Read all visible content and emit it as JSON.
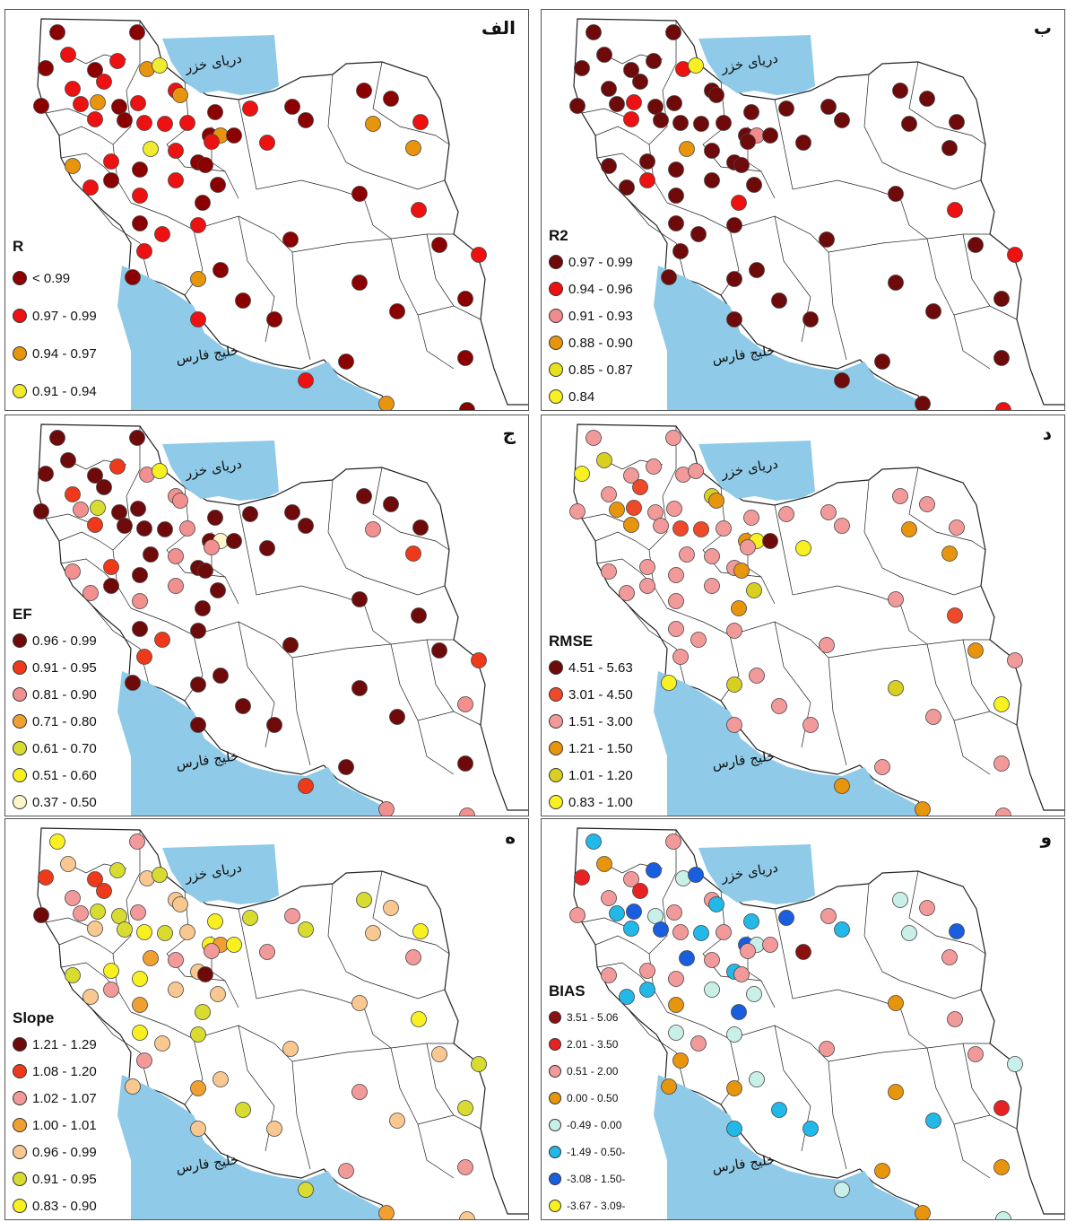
{
  "sea_labels": {
    "caspian": "دریای خزر",
    "gulf": "خلیج فارس"
  },
  "colors": {
    "sea": "#8fcbe8",
    "land": "#ffffff",
    "border": "#222222"
  },
  "panels": [
    {
      "id": "r",
      "title": "الف",
      "legend_title": "R",
      "legend": [
        {
          "label": "< 0.99",
          "color": "#8b0000"
        },
        {
          "label": "0.97 - 0.99",
          "color": "#ee1111"
        },
        {
          "label": "0.94 - 0.97",
          "color": "#e8950e"
        },
        {
          "label": "0.91 - 0.94",
          "color": "#f0ea30"
        }
      ],
      "cats": [
        0,
        0,
        1,
        1,
        0,
        0,
        1,
        1,
        2,
        3,
        1,
        1,
        2,
        2,
        1,
        0,
        0,
        1,
        0,
        1,
        1,
        1,
        0,
        1,
        0,
        0,
        0,
        2,
        0,
        1,
        3,
        1,
        2,
        1,
        0,
        1,
        0,
        0,
        0,
        1,
        1,
        0,
        1,
        0,
        1,
        0,
        1,
        1,
        0,
        2,
        0,
        1,
        0,
        0,
        1,
        2,
        0,
        0,
        1,
        0,
        0,
        0,
        2,
        1,
        2,
        0,
        0,
        0,
        0,
        1,
        0,
        0
      ]
    },
    {
      "id": "r2",
      "title": "ب",
      "legend_title": "R2",
      "legend": [
        {
          "label": "0.97 - 0.99",
          "color": "#6e0a0a"
        },
        {
          "label": "0.94 - 0.96",
          "color": "#ee1111"
        },
        {
          "label": "0.91 - 0.93",
          "color": "#f28b8b"
        },
        {
          "label": "0.88 - 0.90",
          "color": "#e8950e"
        },
        {
          "label": "0.85 - 0.87",
          "color": "#e6e01e"
        },
        {
          "label": "0.84",
          "color": "#f8f020"
        }
      ],
      "cats": [
        0,
        0,
        0,
        0,
        0,
        0,
        0,
        0,
        1,
        5,
        0,
        0,
        1,
        0,
        0,
        0,
        0,
        1,
        0,
        0,
        0,
        0,
        0,
        0,
        0,
        0,
        0,
        2,
        0,
        0,
        3,
        0,
        0,
        0,
        0,
        0,
        0,
        1,
        0,
        0,
        0,
        0,
        0,
        1,
        0,
        0,
        0,
        0,
        0,
        0,
        0,
        0,
        0,
        0,
        0,
        0,
        0,
        0,
        1,
        0,
        0,
        0,
        0,
        0,
        0,
        0,
        0,
        0,
        0,
        1,
        0,
        1
      ]
    },
    {
      "id": "ef",
      "title": "ج",
      "legend_title": "EF",
      "legend": [
        {
          "label": "0.96 - 0.99",
          "color": "#6e0a0a"
        },
        {
          "label": "0.91 - 0.95",
          "color": "#ee3a1a"
        },
        {
          "label": "0.81 - 0.90",
          "color": "#f29090"
        },
        {
          "label": "0.71 - 0.80",
          "color": "#f0a030"
        },
        {
          "label": "0.61 - 0.70",
          "color": "#d8dc30"
        },
        {
          "label": "0.51 - 0.60",
          "color": "#f8f020"
        },
        {
          "label": "0.37 - 0.50",
          "color": "#fdf6c8"
        }
      ],
      "cats": [
        0,
        0,
        0,
        1,
        0,
        0,
        0,
        1,
        2,
        5,
        2,
        2,
        4,
        2,
        0,
        0,
        0,
        1,
        0,
        0,
        0,
        2,
        0,
        0,
        0,
        0,
        0,
        6,
        0,
        0,
        0,
        2,
        2,
        1,
        0,
        2,
        0,
        0,
        0,
        2,
        2,
        0,
        2,
        0,
        1,
        0,
        0,
        1,
        0,
        0,
        0,
        0,
        0,
        0,
        1,
        2,
        0,
        0,
        0,
        0,
        0,
        0,
        2,
        0,
        1,
        0,
        0,
        0,
        2,
        1,
        0,
        2
      ]
    },
    {
      "id": "rmse",
      "title": "د",
      "legend_title": "RMSE",
      "legend": [
        {
          "label": "4.51 - 5.63",
          "color": "#6e0a0a"
        },
        {
          "label": "3.01 - 4.50",
          "color": "#ee4a2a"
        },
        {
          "label": "1.51 - 3.00",
          "color": "#f29a9a"
        },
        {
          "label": "1.21 - 1.50",
          "color": "#e8950e"
        },
        {
          "label": "1.01 - 1.20",
          "color": "#d8d020"
        },
        {
          "label": "0.83 - 1.00",
          "color": "#f8f020"
        }
      ],
      "cats": [
        2,
        2,
        4,
        2,
        2,
        5,
        1,
        2,
        2,
        2,
        4,
        3,
        1,
        3,
        2,
        2,
        2,
        3,
        2,
        1,
        1,
        2,
        2,
        2,
        2,
        2,
        3,
        5,
        0,
        5,
        2,
        2,
        2,
        2,
        2,
        2,
        2,
        2,
        3,
        2,
        2,
        4,
        2,
        3,
        2,
        2,
        2,
        2,
        2,
        4,
        2,
        2,
        2,
        5,
        3,
        3,
        2,
        2,
        1,
        2,
        2,
        2,
        3,
        2,
        3,
        4,
        2,
        3,
        5,
        2,
        2,
        2
      ]
    },
    {
      "id": "slope",
      "title": "ه",
      "legend_title": "Slope",
      "legend": [
        {
          "label": "1.21 - 1.29",
          "color": "#6e0a0a"
        },
        {
          "label": "1.08 - 1.20",
          "color": "#ee3a1a"
        },
        {
          "label": "1.02 - 1.07",
          "color": "#f29a9a"
        },
        {
          "label": "1.00 - 1.01",
          "color": "#f0a030"
        },
        {
          "label": "0.96 - 0.99",
          "color": "#f8c890"
        },
        {
          "label": "0.91 - 0.95",
          "color": "#d8dc30"
        },
        {
          "label": "0.83 - 0.90",
          "color": "#f8f020"
        }
      ],
      "cats": [
        6,
        2,
        4,
        5,
        1,
        1,
        1,
        2,
        4,
        5,
        4,
        2,
        5,
        4,
        2,
        5,
        0,
        4,
        5,
        6,
        5,
        4,
        6,
        5,
        2,
        5,
        6,
        3,
        6,
        2,
        3,
        2,
        5,
        6,
        4,
        2,
        6,
        2,
        0,
        4,
        4,
        4,
        3,
        5,
        4,
        6,
        5,
        2,
        4,
        3,
        5,
        4,
        4,
        4,
        5,
        3,
        4,
        4,
        6,
        2,
        5,
        4,
        4,
        6,
        2,
        2,
        4,
        4,
        5,
        5,
        2,
        4
      ]
    },
    {
      "id": "bias",
      "title": "و",
      "legend_title": "BIAS",
      "legend": [
        {
          "label": "3.51 - 5.06",
          "color": "#8b1010"
        },
        {
          "label": "2.01 - 3.50",
          "color": "#e82222"
        },
        {
          "label": "0.51 - 2.00",
          "color": "#f29a9a"
        },
        {
          "label": "0.00 - 0.50",
          "color": "#e8950e"
        },
        {
          "label": "-0.49 - 0.00",
          "color": "#c8f0e8"
        },
        {
          "label": "-1.49 - 0.50-",
          "color": "#22b8e8"
        },
        {
          "label": "-3.08 - 1.50-",
          "color": "#1a5ee0"
        },
        {
          "label": "-3.67 - 3.09-",
          "color": "#f8f020"
        }
      ],
      "cats": [
        5,
        2,
        3,
        6,
        2,
        1,
        1,
        2,
        4,
        6,
        2,
        5,
        6,
        5,
        2,
        4,
        2,
        5,
        6,
        2,
        5,
        2,
        5,
        6,
        2,
        5,
        6,
        4,
        2,
        0,
        6,
        2,
        2,
        2,
        5,
        2,
        2,
        5,
        2,
        5,
        4,
        4,
        3,
        6,
        2,
        4,
        4,
        3,
        4,
        3,
        5,
        5,
        5,
        3,
        4,
        3,
        2,
        3,
        2,
        3,
        4,
        2,
        4,
        6,
        2,
        3,
        5,
        2,
        1,
        4,
        3,
        4
      ]
    }
  ]
}
